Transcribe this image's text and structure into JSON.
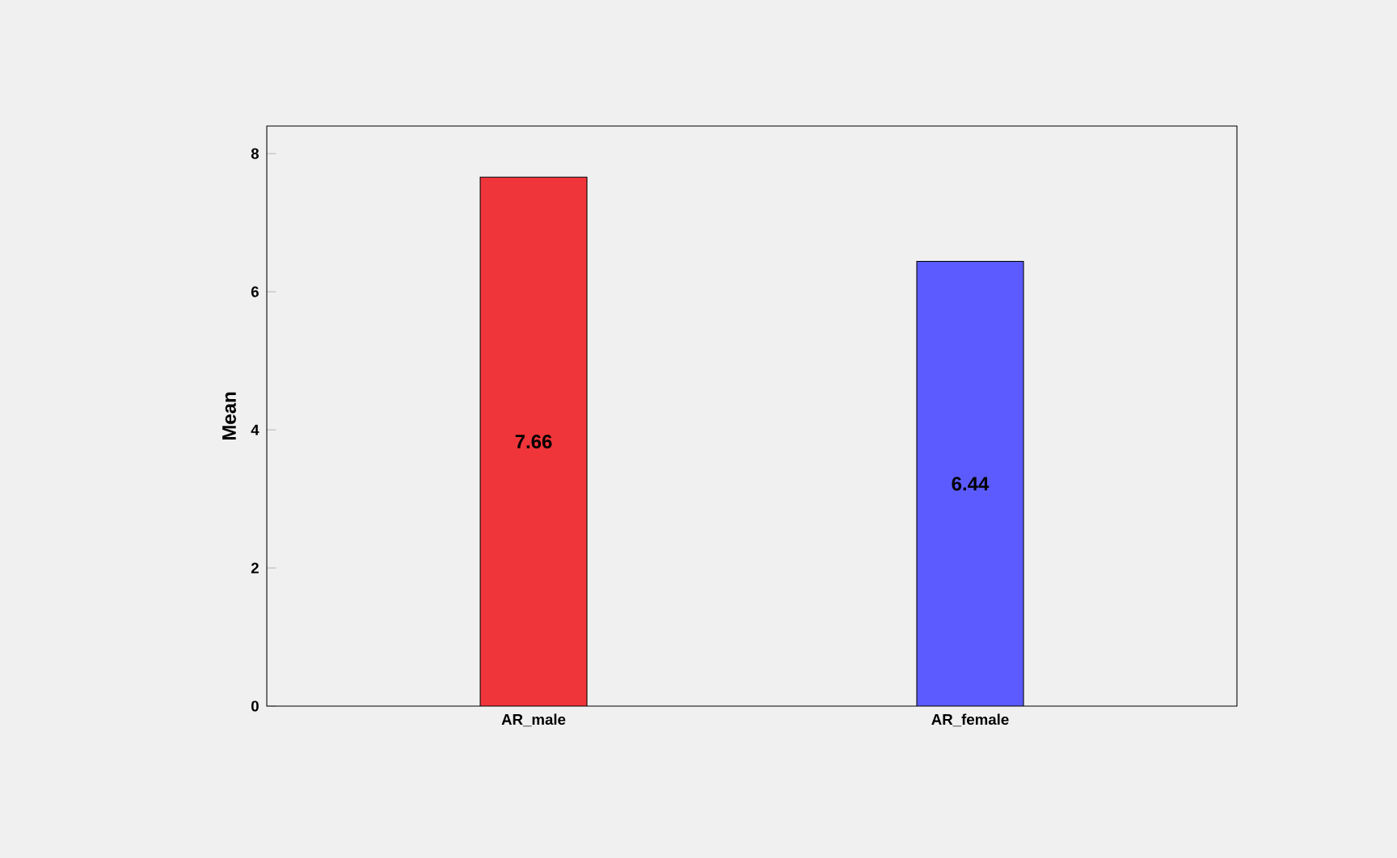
{
  "chart_data": {
    "type": "bar",
    "ylabel": "Mean",
    "categories": [
      "AR_male",
      "AR_female"
    ],
    "values": [
      7.66,
      6.44
    ],
    "colors": [
      "#f0353a",
      "#5b5bff"
    ],
    "data_labels": true,
    "ylim": [
      0,
      8.4
    ],
    "yticks": [
      0,
      2,
      4,
      6,
      8
    ]
  }
}
